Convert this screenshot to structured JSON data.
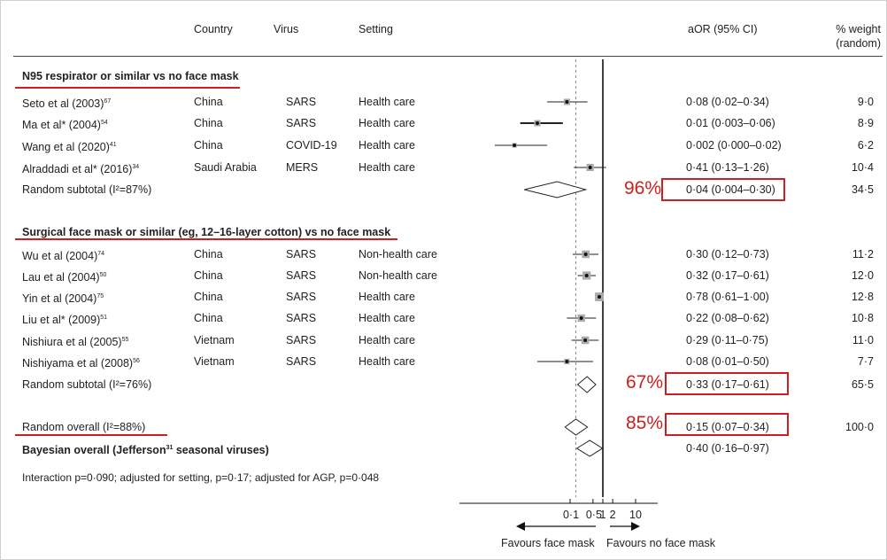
{
  "header": {
    "country": "Country",
    "virus": "Virus",
    "setting": "Setting",
    "aor": "aOR (95% CI)",
    "weight_line1": "% weight",
    "weight_line2": "(random)"
  },
  "section1": {
    "title": "N95 respirator or similar vs no face mask",
    "studies": [
      {
        "study": "Seto et al (2003)",
        "ref": "67",
        "country": "China",
        "virus": "SARS",
        "setting": "Health care",
        "aor": "0·08 (0·02–0·34)",
        "weight": "9·0"
      },
      {
        "study": "Ma et al* (2004)",
        "ref": "54",
        "country": "China",
        "virus": "SARS",
        "setting": "Health care",
        "aor": "0·01 (0·003–0·06)",
        "weight": "8·9"
      },
      {
        "study": "Wang et al (2020)",
        "ref": "41",
        "country": "China",
        "virus": "COVID-19",
        "setting": "Health care",
        "aor": "0·002 (0·000–0·02)",
        "weight": "6·2"
      },
      {
        "study": "Alraddadi et al* (2016)",
        "ref": "34",
        "country": "Saudi Arabia",
        "virus": "MERS",
        "setting": "Health care",
        "aor": "0·41 (0·13–1·26)",
        "weight": "10·4"
      }
    ],
    "subtotal_label": "Random subtotal  (I²=87%)",
    "subtotal_aor": "0·04 (0·004–0·30)",
    "subtotal_weight": "34·5",
    "highlight": "96%"
  },
  "section2": {
    "title": "Surgical face mask or similar (eg, 12–16-layer cotton) vs no face mask",
    "studies": [
      {
        "study": "Wu et al (2004)",
        "ref": "74",
        "country": "China",
        "virus": "SARS",
        "setting": "Non-health care",
        "aor": "0·30 (0·12–0·73)",
        "weight": "11·2"
      },
      {
        "study": "Lau et al (2004)",
        "ref": "50",
        "country": "China",
        "virus": "SARS",
        "setting": "Non-health care",
        "aor": "0·32 (0·17–0·61)",
        "weight": "12·0"
      },
      {
        "study": "Yin et al (2004)",
        "ref": "75",
        "country": "China",
        "virus": "SARS",
        "setting": "Health care",
        "aor": "0·78 (0·61–1·00)",
        "weight": "12·8"
      },
      {
        "study": "Liu et al* (2009)",
        "ref": "51",
        "country": "China",
        "virus": "SARS",
        "setting": "Health care",
        "aor": "0·22 (0·08–0·62)",
        "weight": "10·8"
      },
      {
        "study": "Nishiura et al (2005)",
        "ref": "55",
        "country": "Vietnam",
        "virus": "SARS",
        "setting": "Health care",
        "aor": "0·29 (0·11–0·75)",
        "weight": "11·0"
      },
      {
        "study": "Nishiyama et al (2008)",
        "ref": "56",
        "country": "Vietnam",
        "virus": "SARS",
        "setting": "Health care",
        "aor": "0·08 (0·01–0·50)",
        "weight": "7·7"
      }
    ],
    "subtotal_label": "Random subtotal  (I²=76%)",
    "subtotal_aor": "0·33 (0·17–0·61)",
    "subtotal_weight": "65·5",
    "highlight": "67%"
  },
  "overall": {
    "label": "Random overall  (I²=88%)",
    "aor": "0·15 (0·07–0·34)",
    "weight": "100·0",
    "highlight": "85%",
    "bayes_label_pre": "Bayesian overall (Jefferson",
    "bayes_ref": "31",
    "bayes_label_post": " seasonal viruses)",
    "bayes_aor": "0·40 (0·16–0·97)"
  },
  "footnote": "Interaction p=0·090; adjusted for setting, p=0·17; adjusted for AGP, p=0·048",
  "axis": {
    "ticks": [
      "0·1",
      "0·5",
      "1",
      "2",
      "10"
    ],
    "left_label": "Favours face mask",
    "right_label": "Favours no face mask"
  },
  "chart_data": {
    "type": "forest",
    "x_scale": "log",
    "x_ticks": [
      0.1,
      0.5,
      1,
      2,
      10
    ],
    "reference_line": 1,
    "dashed_line": 0.15,
    "studies": [
      {
        "label": "Seto et al (2003)",
        "est": 0.08,
        "lo": 0.02,
        "hi": 0.34,
        "weight": 9.0
      },
      {
        "label": "Ma et al* (2004)",
        "est": 0.01,
        "lo": 0.003,
        "hi": 0.06,
        "weight": 8.9
      },
      {
        "label": "Wang et al (2020)",
        "est": 0.002,
        "lo": 0.0005,
        "hi": 0.02,
        "weight": 6.2
      },
      {
        "label": "Alraddadi et al* (2016)",
        "est": 0.41,
        "lo": 0.13,
        "hi": 1.26,
        "weight": 10.4
      },
      {
        "label": "Random subtotal N95",
        "est": 0.04,
        "lo": 0.004,
        "hi": 0.3,
        "diamond": true
      },
      {
        "label": "Wu et al (2004)",
        "est": 0.3,
        "lo": 0.12,
        "hi": 0.73,
        "weight": 11.2
      },
      {
        "label": "Lau et al (2004)",
        "est": 0.32,
        "lo": 0.17,
        "hi": 0.61,
        "weight": 12.0
      },
      {
        "label": "Yin et al (2004)",
        "est": 0.78,
        "lo": 0.61,
        "hi": 1.0,
        "weight": 12.8
      },
      {
        "label": "Liu et al* (2009)",
        "est": 0.22,
        "lo": 0.08,
        "hi": 0.62,
        "weight": 10.8
      },
      {
        "label": "Nishiura et al (2005)",
        "est": 0.29,
        "lo": 0.11,
        "hi": 0.75,
        "weight": 11.0
      },
      {
        "label": "Nishiyama et al (2008)",
        "est": 0.08,
        "lo": 0.01,
        "hi": 0.5,
        "weight": 7.7
      },
      {
        "label": "Random subtotal surgical",
        "est": 0.33,
        "lo": 0.17,
        "hi": 0.61,
        "diamond": true
      },
      {
        "label": "Random overall",
        "est": 0.15,
        "lo": 0.07,
        "hi": 0.34,
        "diamond": true
      },
      {
        "label": "Bayesian overall",
        "est": 0.4,
        "lo": 0.16,
        "hi": 0.97,
        "diamond": true
      }
    ]
  }
}
